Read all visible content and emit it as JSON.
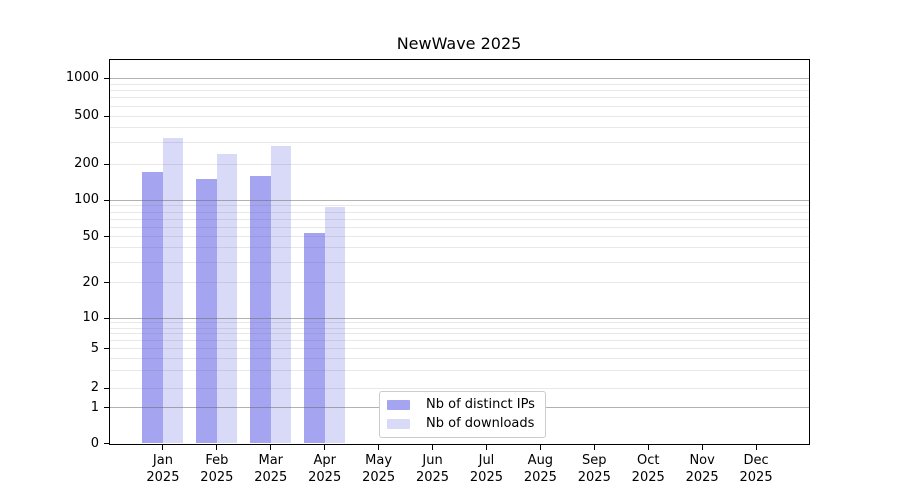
{
  "chart_data": {
    "type": "bar",
    "title": "NewWave 2025",
    "x_categories": [
      "Jan",
      "Feb",
      "Mar",
      "Apr",
      "May",
      "Jun",
      "Jul",
      "Aug",
      "Sep",
      "Oct",
      "Nov",
      "Dec"
    ],
    "x_year_label": "2025",
    "series": [
      {
        "name": "Nb of distinct IPs",
        "color": "#a4a4f1",
        "values": [
          170,
          148,
          157,
          53,
          0,
          0,
          0,
          0,
          0,
          0,
          0,
          0
        ]
      },
      {
        "name": "Nb of downloads",
        "color": "#d9d9f8",
        "values": [
          325,
          240,
          283,
          87,
          0,
          0,
          0,
          0,
          0,
          0,
          0,
          0
        ]
      }
    ],
    "yscale": "symlog",
    "y_tick_labels": [
      0,
      1,
      2,
      5,
      10,
      20,
      50,
      100,
      200,
      500,
      1000
    ],
    "ylim": [
      0,
      1400
    ],
    "grid": true,
    "grid_major_at": [
      1,
      10,
      100,
      1000
    ],
    "legend_position": "lower center inside"
  },
  "colors": {
    "bar_distinct_ips": "#a4a4f1",
    "bar_downloads": "#d9d9f8",
    "grid_major": "#b3b3b3",
    "grid_minor": "#e7e7e7",
    "axis": "#000000",
    "background": "#ffffff"
  },
  "legend": {
    "items": [
      {
        "label": "Nb of distinct IPs",
        "color": "#a4a4f1"
      },
      {
        "label": "Nb of downloads",
        "color": "#d9d9f8"
      }
    ]
  }
}
